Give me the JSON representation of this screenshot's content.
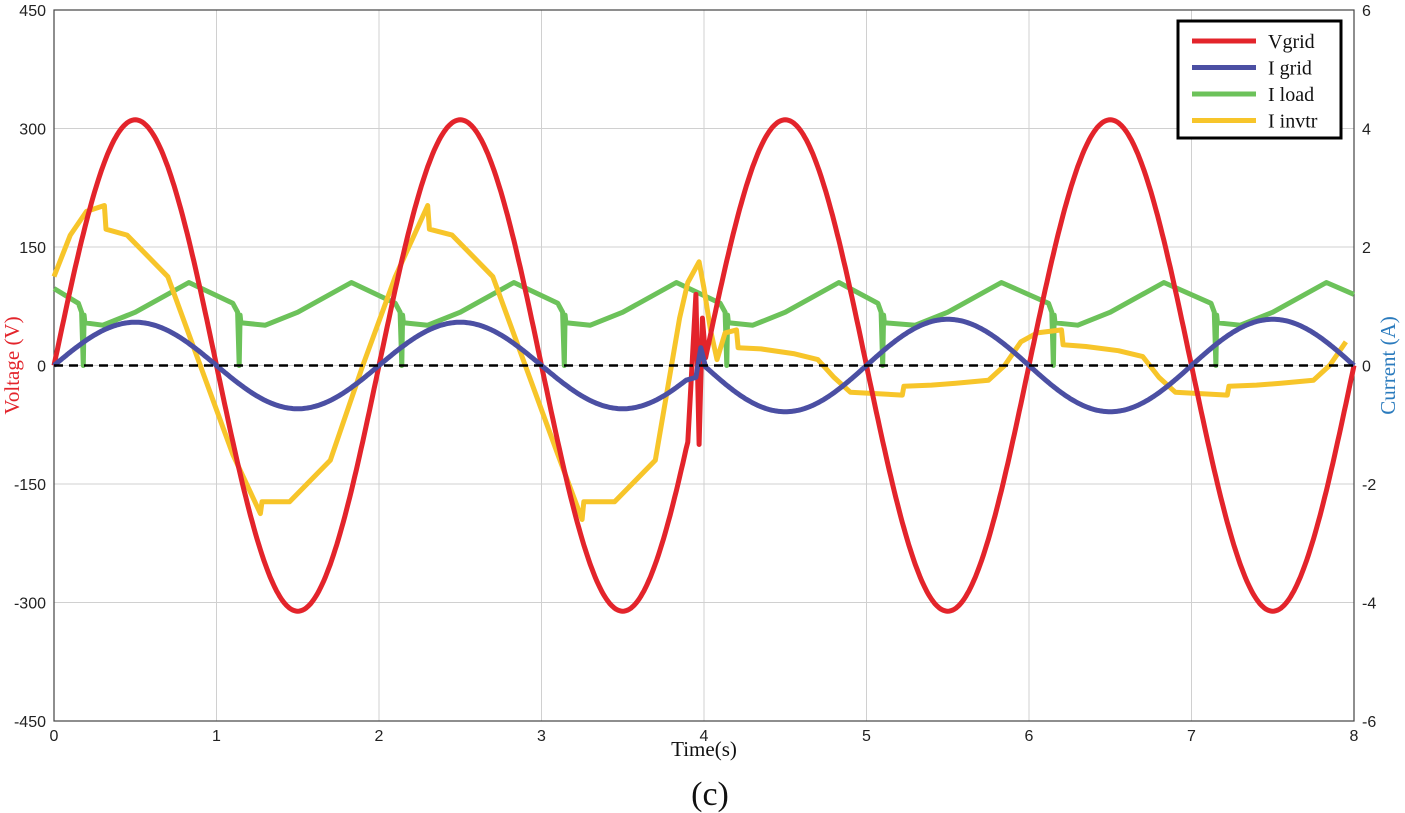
{
  "chart_data": {
    "type": "line",
    "caption": "(c)",
    "xlabel": "Time(s)",
    "ylabel_left": "Voltage (V)",
    "ylabel_right": "Current (A)",
    "xlim": [
      0,
      8
    ],
    "ylim_left": [
      -450,
      450
    ],
    "ylim_right": [
      -6,
      6
    ],
    "x_ticks": [
      "0",
      "1",
      "2",
      "3",
      "4",
      "5",
      "6",
      "7",
      "8"
    ],
    "y_left_ticks": [
      "450",
      "300",
      "150",
      "0",
      "-150",
      "-300",
      "-450"
    ],
    "y_right_ticks": [
      "6",
      "4",
      "2",
      "0",
      "-2",
      "-4",
      "-6"
    ],
    "grid": true,
    "legend_position": "top-right",
    "colors": {
      "vgrid": "#e3242b",
      "igrid": "#4b4fa3",
      "iload": "#6cc25a",
      "iinvtr": "#f7c52a",
      "voltage_label": "#e3242b",
      "current_label": "#2b7bbd",
      "zero_line": "#000000",
      "grid": "#d0d0d0"
    },
    "series": [
      {
        "name": "Vgrid",
        "axis": "left",
        "x": [
          0,
          0.25,
          0.5,
          0.75,
          1,
          1.25,
          1.5,
          1.75,
          2,
          2.25,
          2.5,
          2.75,
          3,
          3.25,
          3.5,
          3.75,
          3.9,
          3.95,
          3.97,
          3.99,
          4,
          4.25,
          4.5,
          4.75,
          5,
          5.25,
          5.5,
          5.75,
          6,
          6.25,
          6.5,
          6.75,
          7,
          7.25,
          7.5,
          7.75,
          8
        ],
        "y": [
          0,
          220,
          311,
          220,
          0,
          -220,
          -311,
          -220,
          0,
          220,
          311,
          220,
          0,
          -220,
          -311,
          -220,
          -97,
          90,
          -100,
          60,
          0,
          220,
          311,
          220,
          0,
          -220,
          -311,
          -220,
          0,
          220,
          311,
          220,
          0,
          -220,
          -311,
          -220,
          0
        ]
      },
      {
        "name": "I grid",
        "axis": "right",
        "x": [
          0,
          0.25,
          0.5,
          0.75,
          1,
          1.25,
          1.5,
          1.75,
          2,
          2.25,
          2.5,
          2.75,
          3,
          3.25,
          3.5,
          3.75,
          3.95,
          3.98,
          4,
          4.25,
          4.5,
          4.75,
          5,
          5.25,
          5.5,
          5.75,
          6,
          6.25,
          6.5,
          6.75,
          7,
          7.25,
          7.5,
          7.75,
          8
        ],
        "y": [
          0,
          0.52,
          0.73,
          0.52,
          0,
          -0.52,
          -0.73,
          -0.52,
          0,
          0.52,
          0.73,
          0.52,
          0,
          -0.52,
          -0.73,
          -0.52,
          -0.2,
          0.3,
          0,
          -0.55,
          -0.78,
          -0.55,
          0,
          0.55,
          0.78,
          0.55,
          0,
          -0.55,
          -0.78,
          -0.55,
          0,
          0.55,
          0.78,
          0.55,
          0
        ]
      },
      {
        "name": "I load",
        "axis": "right",
        "x": [
          0,
          0.15,
          0.17,
          0.18,
          0.185,
          0.19,
          0.3,
          0.5,
          0.83,
          1.1,
          1.13,
          1.14,
          1.145,
          1.15,
          1.3,
          1.5,
          1.83,
          2.1,
          2.13,
          2.14,
          2.145,
          2.15,
          2.3,
          2.5,
          2.83,
          3.1,
          3.13,
          3.14,
          3.145,
          3.15,
          3.3,
          3.5,
          3.83,
          4.1,
          4.13,
          4.14,
          4.145,
          4.15,
          4.3,
          4.5,
          4.83,
          5.07,
          5.09,
          5.1,
          5.105,
          5.11,
          5.3,
          5.5,
          5.83,
          6.12,
          6.14,
          6.15,
          6.155,
          6.16,
          6.3,
          6.5,
          6.83,
          7.12,
          7.14,
          7.15,
          7.155,
          7.16,
          7.3,
          7.5,
          7.83,
          8
        ],
        "y": [
          1.3,
          1.05,
          0.9,
          0,
          0.85,
          0.72,
          0.68,
          0.9,
          1.4,
          1.05,
          0.9,
          0,
          0.85,
          0.72,
          0.68,
          0.9,
          1.4,
          1.05,
          0.9,
          0,
          0.85,
          0.72,
          0.68,
          0.9,
          1.4,
          1.05,
          0.9,
          0,
          0.85,
          0.72,
          0.68,
          0.9,
          1.4,
          1.05,
          0.9,
          0,
          0.85,
          0.72,
          0.68,
          0.9,
          1.4,
          1.05,
          0.9,
          0,
          0.85,
          0.72,
          0.68,
          0.9,
          1.4,
          1.05,
          0.9,
          0,
          0.85,
          0.72,
          0.68,
          0.9,
          1.4,
          1.05,
          0.9,
          0,
          0.85,
          0.72,
          0.68,
          0.9,
          1.4,
          1.2
        ]
      },
      {
        "name": "I invtr",
        "axis": "right",
        "x": [
          0,
          0.1,
          0.2,
          0.31,
          0.32,
          0.45,
          0.7,
          0.9,
          1.1,
          1.27,
          1.28,
          1.45,
          1.7,
          1.9,
          2.1,
          2.3,
          2.31,
          2.45,
          2.7,
          2.9,
          3.1,
          3.25,
          3.26,
          3.45,
          3.7,
          3.85,
          3.9,
          3.97,
          4.0,
          4.04,
          4.08,
          4.13,
          4.2,
          4.21,
          4.35,
          4.55,
          4.7,
          4.8,
          4.9,
          5.22,
          5.23,
          5.4,
          5.55,
          5.75,
          5.85,
          5.95,
          6.05,
          6.2,
          6.21,
          6.35,
          6.55,
          6.7,
          6.8,
          6.9,
          7.22,
          7.23,
          7.4,
          7.55,
          7.75,
          7.85,
          7.95
        ],
        "y": [
          1.5,
          2.2,
          2.6,
          2.7,
          2.3,
          2.2,
          1.5,
          0,
          -1.5,
          -2.5,
          -2.3,
          -2.3,
          -1.6,
          0,
          1.5,
          2.7,
          2.3,
          2.2,
          1.5,
          0,
          -1.5,
          -2.6,
          -2.3,
          -2.3,
          -1.6,
          0.8,
          1.4,
          1.75,
          1.3,
          0.6,
          0.1,
          0.55,
          0.6,
          0.3,
          0.28,
          0.2,
          0.1,
          -0.2,
          -0.45,
          -0.5,
          -0.35,
          -0.33,
          -0.3,
          -0.25,
          0,
          0.4,
          0.55,
          0.6,
          0.35,
          0.32,
          0.25,
          0.15,
          -0.2,
          -0.45,
          -0.5,
          -0.35,
          -0.33,
          -0.3,
          -0.25,
          0,
          0.4
        ]
      }
    ]
  }
}
